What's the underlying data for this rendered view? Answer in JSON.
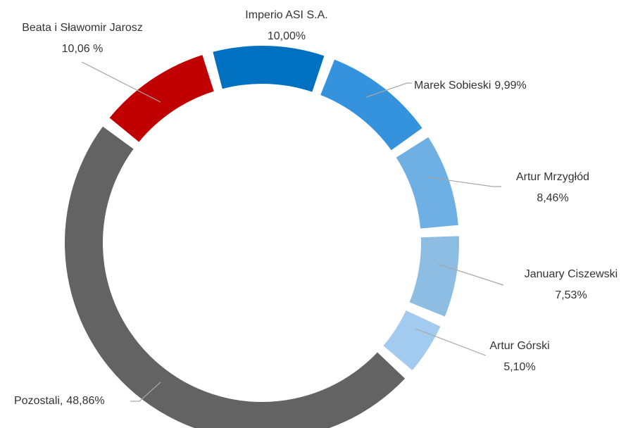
{
  "chart_data": {
    "type": "donut",
    "categories": [
      "Imperio ASI S.A.",
      "Marek Sobieski",
      "Artur Mrzygłód",
      "January Ciszewski",
      "Artur Górski",
      "Pozostali,",
      "Beata i Sławomir Jarosz"
    ],
    "values": [
      10.0,
      9.99,
      8.46,
      7.53,
      5.1,
      48.86,
      10.06
    ],
    "value_labels": [
      "10,00%",
      "9,99%",
      "8,46%",
      "7,53%",
      "5,10%",
      "48,86%",
      "10,06 %"
    ],
    "colors": [
      "#0070c0",
      "#3592dc",
      "#6eb0e4",
      "#8dbde2",
      "#a3cbef",
      "#636363",
      "#c00000"
    ]
  }
}
